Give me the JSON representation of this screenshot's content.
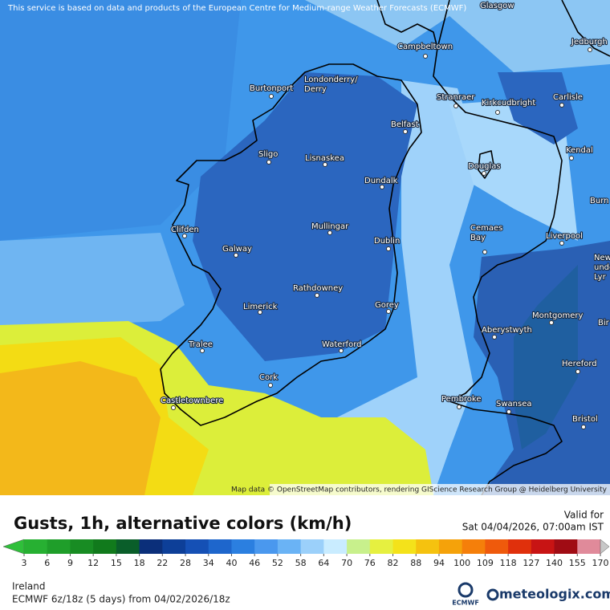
{
  "header": {
    "notice": "This service is based on data and products of the European Centre for Medium-range Weather Forecasts (ECMWF)"
  },
  "map": {
    "places": [
      [
        "Glasgow"
      ],
      [
        "Jedburgh"
      ],
      [
        "Campbeltown"
      ],
      [
        "Londonderry/",
        "Derry"
      ],
      [
        "Burtonport"
      ],
      [
        "Stranraer"
      ],
      [
        "Kirkcudbright"
      ],
      [
        "Carlisle"
      ],
      [
        "Belfast"
      ],
      [
        "Kendal"
      ],
      [
        "Sligo"
      ],
      [
        "Lisnaskea"
      ],
      [
        "Douglas"
      ],
      [
        "Dundalk"
      ],
      [
        "Burn"
      ],
      [
        "Clifden"
      ],
      [
        "Mullingar"
      ],
      [
        "Cemaes",
        "Bay"
      ],
      [
        "Liverpool"
      ],
      [
        "Dublin"
      ],
      [
        "Galway"
      ],
      [
        "Newca",
        "unde",
        "Lyr"
      ],
      [
        "Rathdowney"
      ],
      [
        "Limerick"
      ],
      [
        "Gorey"
      ],
      [
        "Montgomery"
      ],
      [
        "Bir"
      ],
      [
        "Aberystwyth"
      ],
      [
        "Tralee"
      ],
      [
        "Waterford"
      ],
      [
        "Hereford"
      ],
      [
        "Cork"
      ],
      [
        "Pembroke"
      ],
      [
        "Swansea"
      ],
      [
        "Castletownbere"
      ],
      [
        "Bristol"
      ]
    ],
    "credit": "Map data © OpenStreetMap contributors, rendering GIScience Research Group @ Heidelberg University"
  },
  "legend": {
    "title": "Gusts, 1h, alternative colors (km/h)",
    "valid_label": "Valid for",
    "valid_time": "Sat 04/04/2026, 07:00am IST",
    "ticks": [
      3,
      6,
      9,
      12,
      15,
      18,
      22,
      28,
      34,
      40,
      46,
      52,
      58,
      64,
      70,
      76,
      82,
      88,
      94,
      100,
      109,
      118,
      127,
      140,
      155,
      170
    ],
    "colors": [
      "#2fbf3a",
      "#27b032",
      "#1f9e2a",
      "#188c23",
      "#117a1c",
      "#0a5e2a",
      "#0b2f7a",
      "#0d3f98",
      "#1550b5",
      "#1e66cc",
      "#2b7fe0",
      "#4a98ee",
      "#6ab3f5",
      "#9bd0fa",
      "#c9ecff",
      "#c8f08c",
      "#e6f040",
      "#f4e21a",
      "#f5c20f",
      "#f5a20a",
      "#f57f0a",
      "#ef5a0c",
      "#e0300c",
      "#c81414",
      "#a00c14",
      "#e08a9a",
      "#f0c8d0",
      "#c8c8c8"
    ]
  },
  "footer": {
    "region": "Ireland",
    "model": "ECMWF 6z/18z (5 days) from 04/02/2026/18z",
    "logo": "ECMWF",
    "brand": "meteologix.com"
  }
}
